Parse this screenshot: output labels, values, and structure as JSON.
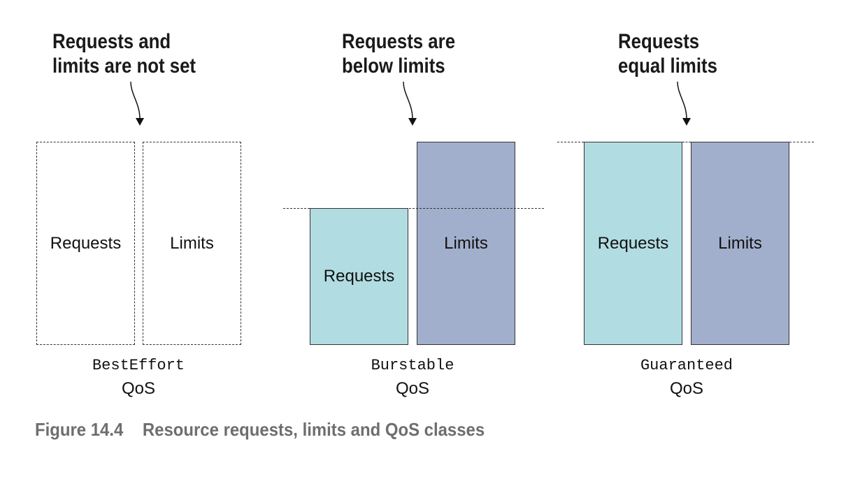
{
  "annotations": {
    "besteffort": [
      "Requests and",
      "limits are not set"
    ],
    "burstable": [
      "Requests are",
      "below limits"
    ],
    "guaranteed": [
      "Requests",
      "equal limits"
    ]
  },
  "boxes": {
    "requests_label": "Requests",
    "limits_label": "Limits"
  },
  "classes": {
    "besteffort": "BestEffort",
    "burstable": "Burstable",
    "guaranteed": "Guaranteed",
    "qos_label": "QoS"
  },
  "caption": {
    "number": "Figure 14.4",
    "text": "Resource requests, limits and QoS classes"
  },
  "colors": {
    "requests_fill": "#b1dde2",
    "limits_fill": "#a2afcc",
    "caption_text": "#6e6e6e"
  }
}
